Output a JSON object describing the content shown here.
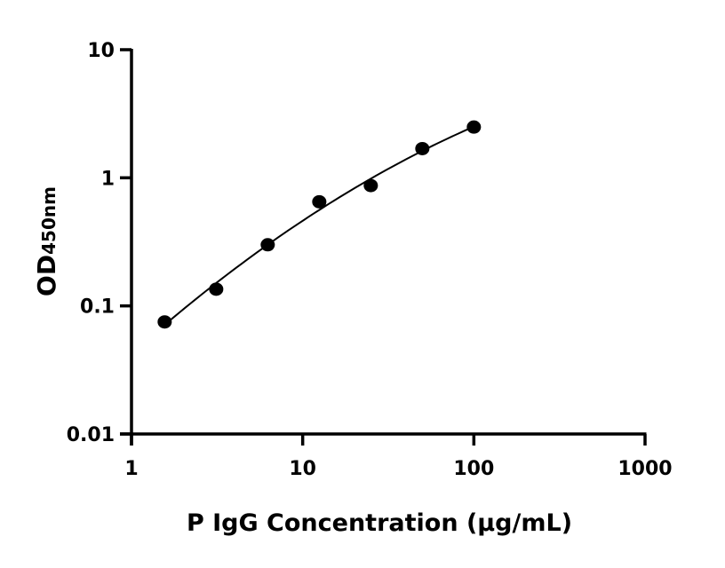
{
  "chart_data": {
    "type": "scatter",
    "title": "",
    "xlabel": "P IgG Concentration (μg/mL)",
    "ylabel_main": "OD",
    "ylabel_sub": "450nm",
    "x_scale": "log",
    "y_scale": "log",
    "xlim": [
      1,
      1000
    ],
    "ylim": [
      0.01,
      10
    ],
    "x_ticks": [
      {
        "value": 1,
        "label": "1"
      },
      {
        "value": 10,
        "label": "10"
      },
      {
        "value": 100,
        "label": "100"
      },
      {
        "value": 1000,
        "label": "1000"
      }
    ],
    "y_ticks": [
      {
        "value": 0.01,
        "label": "0.01"
      },
      {
        "value": 0.1,
        "label": "0.1"
      },
      {
        "value": 1,
        "label": "1"
      },
      {
        "value": 10,
        "label": "10"
      }
    ],
    "grid": false,
    "fit_curve": true,
    "color": "#000000",
    "series": [
      {
        "x": [
          1.5625,
          3.125,
          6.25,
          12.5,
          25,
          50,
          100
        ],
        "y": [
          0.075,
          0.135,
          0.3,
          0.65,
          0.87,
          1.69,
          2.49
        ]
      }
    ]
  }
}
